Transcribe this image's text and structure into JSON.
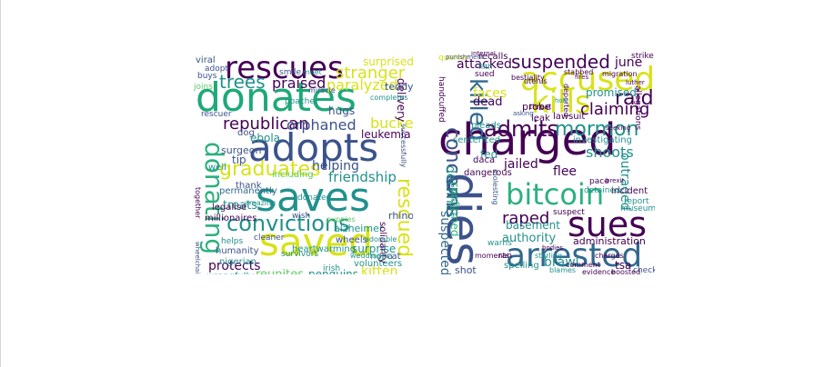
{
  "colors": {
    "dark_purple": "#440154",
    "indigo": "#3b528b",
    "slate": "#31688e",
    "teal": "#21918c",
    "green": "#2cb17e",
    "emerald": "#1ea978",
    "lime": "#5ec962",
    "yellow": "#d8e219"
  },
  "clouds": [
    {
      "id": "positive",
      "words": [
        {
          "text": "donates",
          "color": "emerald"
        },
        {
          "text": "adopts",
          "color": "indigo"
        },
        {
          "text": "saves",
          "color": "teal"
        },
        {
          "text": "saved",
          "color": "yellow"
        },
        {
          "text": "rescues",
          "color": "dark_purple"
        },
        {
          "text": "donating",
          "color": "green"
        },
        {
          "text": "convictions",
          "color": "teal"
        },
        {
          "text": "graduates",
          "color": "yellow"
        },
        {
          "text": "rescued",
          "color": "yellow"
        },
        {
          "text": "stranger",
          "color": "yellow"
        },
        {
          "text": "trees",
          "color": "teal"
        },
        {
          "text": "praised",
          "color": "dark_purple"
        },
        {
          "text": "paralyzed",
          "color": "yellow"
        },
        {
          "text": "republican",
          "color": "dark_purple"
        },
        {
          "text": "orphaned",
          "color": "indigo"
        },
        {
          "text": "friendship",
          "color": "teal"
        },
        {
          "text": "helping",
          "color": "indigo"
        },
        {
          "text": "protects",
          "color": "dark_purple"
        },
        {
          "text": "surprised",
          "color": "yellow"
        },
        {
          "text": "bucket",
          "color": "yellow"
        },
        {
          "text": "leukemia",
          "color": "dark_purple"
        },
        {
          "text": "treats",
          "color": "teal"
        },
        {
          "text": "kitten",
          "color": "yellow"
        },
        {
          "text": "reunites",
          "color": "lime"
        },
        {
          "text": "penguins",
          "color": "teal"
        },
        {
          "text": "wrongfully",
          "color": "teal"
        },
        {
          "text": "surprise",
          "color": "teal"
        },
        {
          "text": "delivery",
          "color": "dark_purple"
        },
        {
          "text": "surgeon",
          "color": "indigo"
        },
        {
          "text": "millionaires",
          "color": "dark_purple"
        },
        {
          "text": "alzheimer",
          "color": "teal"
        },
        {
          "text": "heartwarming",
          "color": "teal"
        },
        {
          "text": "legalise",
          "color": "dark_purple"
        },
        {
          "text": "permanently",
          "color": "slate"
        },
        {
          "text": "humanity",
          "color": "indigo"
        },
        {
          "text": "volunteers",
          "color": "teal"
        },
        {
          "text": "solidarity",
          "color": "dark_purple"
        },
        {
          "text": "nigerian",
          "color": "teal"
        },
        {
          "text": "survivors",
          "color": "teal"
        },
        {
          "text": "cleaner",
          "color": "indigo"
        },
        {
          "text": "wheels",
          "color": "indigo"
        },
        {
          "text": "nepa",
          "color": "teal"
        },
        {
          "text": "hugs",
          "color": "indigo"
        },
        {
          "text": "ebola",
          "color": "teal"
        },
        {
          "text": "dog",
          "color": "indigo"
        },
        {
          "text": "tip",
          "color": "indigo"
        },
        {
          "text": "thank",
          "color": "indigo"
        },
        {
          "text": "teddy",
          "color": "indigo"
        },
        {
          "text": "viral",
          "color": "indigo"
        },
        {
          "text": "adopt",
          "color": "indigo"
        },
        {
          "text": "buys",
          "color": "indigo"
        },
        {
          "text": "joins",
          "color": "lime"
        },
        {
          "text": "rescuer",
          "color": "indigo"
        },
        {
          "text": "smile",
          "color": "indigo"
        },
        {
          "text": "meet",
          "color": "teal"
        },
        {
          "text": "rhino",
          "color": "indigo"
        },
        {
          "text": "helps",
          "color": "teal"
        },
        {
          "text": "wish",
          "color": "indigo"
        },
        {
          "text": "irish",
          "color": "teal"
        },
        {
          "text": "cat",
          "color": "indigo"
        },
        {
          "text": "donated",
          "color": "teal"
        },
        {
          "text": "well",
          "color": "teal"
        },
        {
          "text": "including",
          "color": "lime"
        },
        {
          "text": "poacher",
          "color": "teal"
        },
        {
          "text": "together",
          "color": "dark_purple"
        },
        {
          "text": "completes",
          "color": "teal"
        },
        {
          "text": "amazing",
          "color": "teal"
        },
        {
          "text": "puppies",
          "color": "lime"
        },
        {
          "text": "adorable",
          "color": "teal"
        },
        {
          "text": "wedding",
          "color": "teal"
        },
        {
          "text": "miracle",
          "color": "indigo"
        },
        {
          "text": "successfully",
          "color": "indigo"
        },
        {
          "text": "wheelchair",
          "color": "indigo"
        }
      ]
    },
    {
      "id": "negative",
      "words": [
        {
          "text": "charged",
          "color": "dark_purple"
        },
        {
          "text": "accused",
          "color": "yellow"
        },
        {
          "text": "dies",
          "color": "indigo"
        },
        {
          "text": "sues",
          "color": "dark_purple"
        },
        {
          "text": "arrested",
          "color": "slate"
        },
        {
          "text": "bitcoin",
          "color": "green"
        },
        {
          "text": "kills",
          "color": "yellow"
        },
        {
          "text": "killed",
          "color": "slate"
        },
        {
          "text": "admits",
          "color": "dark_purple"
        },
        {
          "text": "suspended",
          "color": "dark_purple"
        },
        {
          "text": "mormon",
          "color": "teal"
        },
        {
          "text": "concerns",
          "color": "indigo"
        },
        {
          "text": "raid",
          "color": "dark_purple"
        },
        {
          "text": "claiming",
          "color": "dark_purple"
        },
        {
          "text": "shoots",
          "color": "teal"
        },
        {
          "text": "raped",
          "color": "dark_purple"
        },
        {
          "text": "jailed",
          "color": "dark_purple"
        },
        {
          "text": "declines",
          "color": "teal"
        },
        {
          "text": "suspected",
          "color": "slate"
        },
        {
          "text": "authority",
          "color": "teal"
        },
        {
          "text": "outraged",
          "color": "teal"
        },
        {
          "text": "brawl",
          "color": "teal"
        },
        {
          "text": "flee",
          "color": "dark_purple"
        },
        {
          "text": "basement",
          "color": "teal"
        },
        {
          "text": "attacked",
          "color": "dark_purple"
        },
        {
          "text": "june",
          "color": "dark_purple"
        },
        {
          "text": "faces",
          "color": "yellow"
        },
        {
          "text": "confirmed",
          "color": "green"
        },
        {
          "text": "dead",
          "color": "dark_purple"
        },
        {
          "text": "promised",
          "color": "teal"
        },
        {
          "text": "tsa",
          "color": "dark_purple"
        },
        {
          "text": "administration",
          "color": "dark_purple"
        },
        {
          "text": "dangerous",
          "color": "dark_purple"
        },
        {
          "text": "sentenced",
          "color": "teal"
        },
        {
          "text": "shot",
          "color": "indigo"
        },
        {
          "text": "spelling",
          "color": "teal"
        },
        {
          "text": "investigating",
          "color": "teal"
        },
        {
          "text": "handcuffed",
          "color": "dark_purple"
        },
        {
          "text": "sued",
          "color": "dark_purple"
        },
        {
          "text": "probe",
          "color": "dark_purple"
        },
        {
          "text": "fed",
          "color": "teal"
        },
        {
          "text": "daca",
          "color": "dark_purple"
        },
        {
          "text": "lawsuit",
          "color": "dark_purple"
        },
        {
          "text": "pleads",
          "color": "teal"
        },
        {
          "text": "warns",
          "color": "teal"
        },
        {
          "text": "ran",
          "color": "dark_purple"
        },
        {
          "text": "incident",
          "color": "dark_purple"
        },
        {
          "text": "report",
          "color": "teal"
        },
        {
          "text": "museum",
          "color": "teal"
        },
        {
          "text": "suspect",
          "color": "dark_purple"
        },
        {
          "text": "detained",
          "color": "teal"
        },
        {
          "text": "pace",
          "color": "dark_purple"
        },
        {
          "text": "strike",
          "color": "dark_purple"
        },
        {
          "text": "recalls",
          "color": "dark_purple"
        },
        {
          "text": "leak",
          "color": "dark_purple"
        },
        {
          "text": "allegations",
          "color": "dark_purple"
        },
        {
          "text": "moments",
          "color": "dark_purple"
        },
        {
          "text": "stabbed",
          "color": "dark_purple"
        },
        {
          "text": "blames",
          "color": "teal"
        },
        {
          "text": "checks",
          "color": "indigo"
        },
        {
          "text": "quarter",
          "color": "yellow"
        },
        {
          "text": "threat",
          "color": "dark_purple"
        },
        {
          "text": "deported",
          "color": "dark_purple"
        },
        {
          "text": "sterling",
          "color": "teal"
        },
        {
          "text": "comment",
          "color": "dark_purple"
        },
        {
          "text": "molesting",
          "color": "indigo"
        },
        {
          "text": "charges",
          "color": "dark_purple"
        },
        {
          "text": "bestiality",
          "color": "dark_purple"
        },
        {
          "text": "filth",
          "color": "teal"
        },
        {
          "text": "uterus",
          "color": "dark_purple"
        },
        {
          "text": "migration",
          "color": "dark_purple"
        },
        {
          "text": "boosted",
          "color": "dark_purple"
        },
        {
          "text": "evidence",
          "color": "dark_purple"
        },
        {
          "text": "internal",
          "color": "dark_purple"
        },
        {
          "text": "brexit",
          "color": "dark_purple"
        },
        {
          "text": "bodies",
          "color": "dark_purple"
        },
        {
          "text": "seeking",
          "color": "dark_purple"
        },
        {
          "text": "luther",
          "color": "dark_purple"
        },
        {
          "text": "hole",
          "color": "teal"
        },
        {
          "text": "asking",
          "color": "indigo"
        },
        {
          "text": "punishment",
          "color": "indigo"
        },
        {
          "text": "fires",
          "color": "dark_purple"
        }
      ]
    }
  ]
}
